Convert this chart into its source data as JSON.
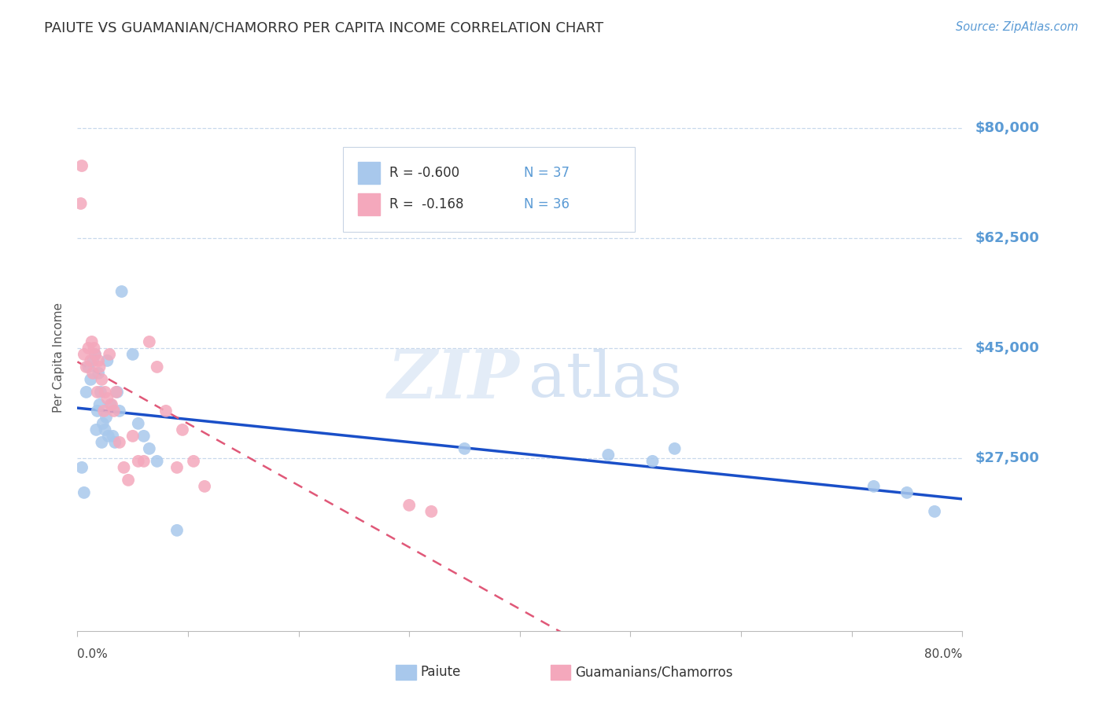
{
  "title": "PAIUTE VS GUAMANIAN/CHAMORRO PER CAPITA INCOME CORRELATION CHART",
  "source": "Source: ZipAtlas.com",
  "ylabel": "Per Capita Income",
  "xmin": 0.0,
  "xmax": 0.8,
  "ymin": 0,
  "ymax": 87000,
  "paiute_color": "#A8C8EC",
  "guamanian_color": "#F4A8BC",
  "trendline_paiute_color": "#1A4FC8",
  "trendline_guamanian_color": "#E05878",
  "background_color": "#FFFFFF",
  "grid_color": "#C8D8EC",
  "ytick_vals": [
    27500,
    45000,
    62500,
    80000
  ],
  "ytick_labels": [
    "$27,500",
    "$45,000",
    "$62,500",
    "$80,000"
  ],
  "paiute_x": [
    0.004,
    0.006,
    0.008,
    0.01,
    0.012,
    0.014,
    0.016,
    0.017,
    0.018,
    0.019,
    0.02,
    0.021,
    0.022,
    0.023,
    0.025,
    0.026,
    0.027,
    0.028,
    0.03,
    0.032,
    0.034,
    0.036,
    0.038,
    0.04,
    0.05,
    0.055,
    0.06,
    0.065,
    0.072,
    0.09,
    0.35,
    0.48,
    0.52,
    0.54,
    0.72,
    0.75,
    0.775
  ],
  "paiute_y": [
    26000,
    22000,
    38000,
    42000,
    40000,
    43000,
    44000,
    32000,
    35000,
    41000,
    36000,
    38000,
    30000,
    33000,
    32000,
    34000,
    43000,
    31000,
    36000,
    31000,
    30000,
    38000,
    35000,
    54000,
    44000,
    33000,
    31000,
    29000,
    27000,
    16000,
    29000,
    28000,
    27000,
    29000,
    23000,
    22000,
    19000
  ],
  "guamanian_x": [
    0.003,
    0.004,
    0.006,
    0.008,
    0.01,
    0.012,
    0.013,
    0.014,
    0.015,
    0.016,
    0.018,
    0.019,
    0.02,
    0.022,
    0.024,
    0.025,
    0.027,
    0.029,
    0.031,
    0.033,
    0.035,
    0.038,
    0.042,
    0.046,
    0.05,
    0.055,
    0.06,
    0.065,
    0.072,
    0.08,
    0.09,
    0.095,
    0.105,
    0.115,
    0.3,
    0.32
  ],
  "guamanian_y": [
    68000,
    74000,
    44000,
    42000,
    45000,
    43000,
    46000,
    41000,
    45000,
    44000,
    38000,
    43000,
    42000,
    40000,
    35000,
    38000,
    37000,
    44000,
    36000,
    35000,
    38000,
    30000,
    26000,
    24000,
    31000,
    27000,
    27000,
    46000,
    42000,
    35000,
    26000,
    32000,
    27000,
    23000,
    20000,
    19000
  ]
}
